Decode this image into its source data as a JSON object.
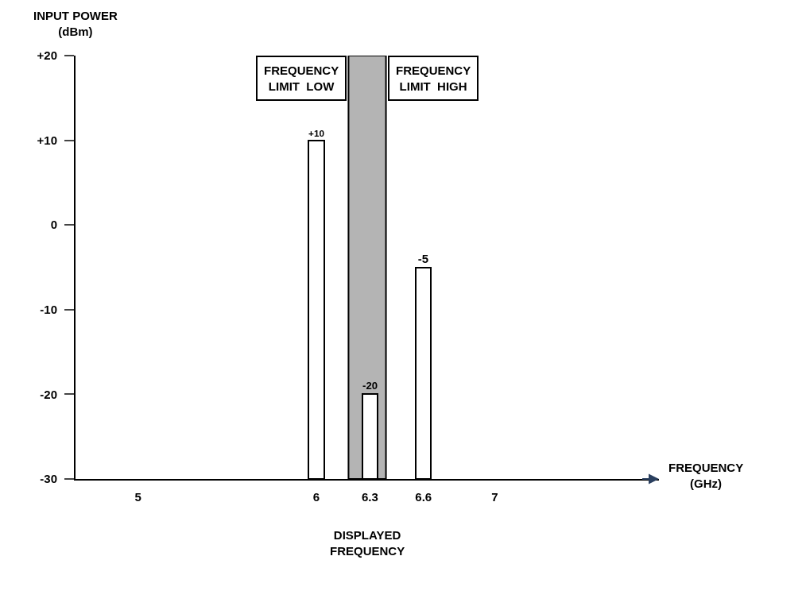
{
  "chart_data": {
    "type": "bar",
    "xlabel": "FREQUENCY\n(GHz)",
    "ylabel": "INPUT POWER\n(dBm)",
    "x": [
      6,
      6.3,
      6.6
    ],
    "values": [
      40,
      10,
      25
    ],
    "base": [
      -30,
      -30,
      -30
    ],
    "value_labels": [
      "+10",
      "-20",
      "-5"
    ],
    "color": "#ffffff",
    "xlim": [
      4.65,
      7.92
    ],
    "xticks": [
      5,
      6,
      6.3,
      6.6,
      7
    ],
    "ylim": [
      -30,
      20
    ],
    "yticks": [
      {
        "value": 20,
        "label": "+20"
      },
      {
        "value": 10,
        "label": "+10"
      },
      0,
      -10,
      -20,
      -30
    ],
    "bands": [
      {
        "axis": "x",
        "from": 6.18,
        "to": 6.39,
        "color": "#b4b4b4"
      }
    ],
    "annotations": [
      {
        "text": "FREQUENCY\nLIMIT  LOW",
        "x": 6.18,
        "y": 20
      },
      {
        "text": "FREQUENCY\nLIMIT  HIGH",
        "x": 6.39,
        "y": 20
      },
      "DISPLAYED\nFREQUENCY"
    ],
    "grid": false,
    "legend": false
  }
}
